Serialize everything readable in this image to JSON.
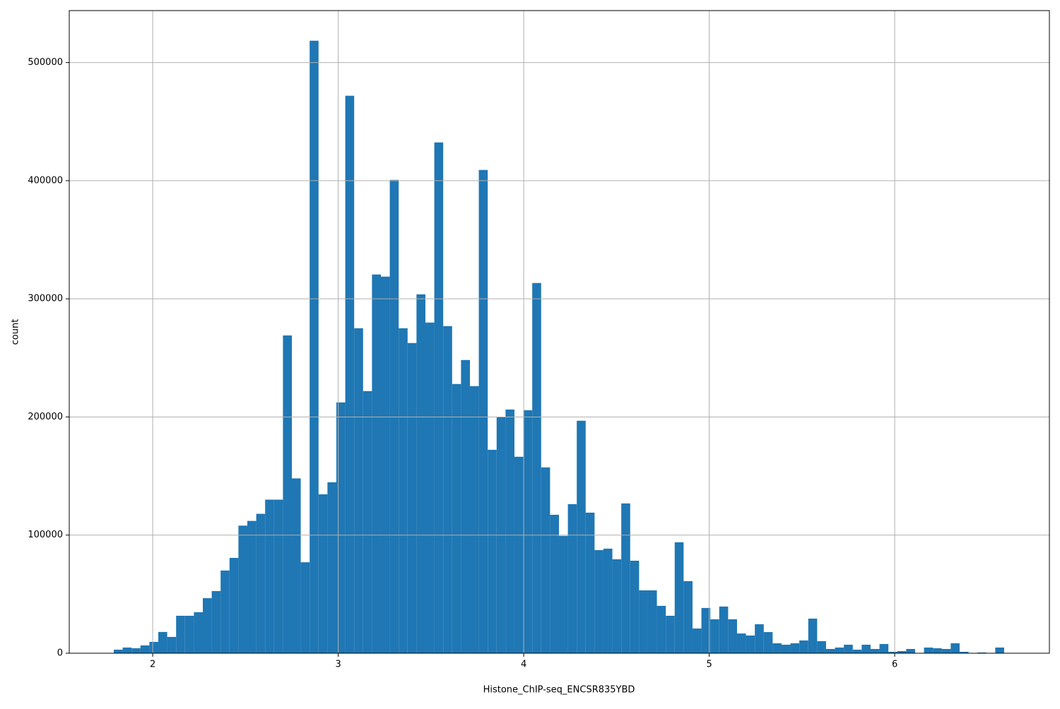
{
  "chart_data": {
    "type": "histogram",
    "xlabel": "Histone_ChIP-seq_ENCSR835YBD",
    "ylabel": "count",
    "color": "#1f77b4",
    "grid": true,
    "bins": [
      1.79,
      1.838,
      1.886,
      1.934,
      1.982,
      2.03,
      2.078,
      2.126,
      2.174,
      2.222,
      2.27,
      2.318,
      2.366,
      2.414,
      2.462,
      2.51,
      2.558,
      2.606,
      2.654,
      2.702,
      2.75,
      2.798,
      2.846,
      2.894,
      2.942,
      2.99,
      3.038,
      3.086,
      3.134,
      3.182,
      3.23,
      3.278,
      3.326,
      3.374,
      3.422,
      3.47,
      3.518,
      3.566,
      3.614,
      3.662,
      3.71,
      3.758,
      3.806,
      3.854,
      3.902,
      3.95,
      3.998,
      4.046,
      4.094,
      4.142,
      4.19,
      4.238,
      4.286,
      4.334,
      4.382,
      4.43,
      4.478,
      4.526,
      4.574,
      4.622,
      4.67,
      4.718,
      4.766,
      4.814,
      4.862,
      4.91,
      4.958,
      5.006,
      5.054,
      5.102,
      5.15,
      5.198,
      5.246,
      5.294,
      5.342,
      5.39,
      5.438,
      5.486,
      5.534,
      5.582,
      5.63,
      5.678,
      5.726,
      5.774,
      5.822,
      5.87,
      5.918,
      5.966,
      6.014,
      6.062,
      6.11,
      6.158,
      6.206,
      6.254,
      6.302,
      6.35,
      6.398,
      6.446,
      6.494,
      6.542,
      6.59
    ],
    "values": [
      3000,
      4800,
      4200,
      6600,
      9600,
      18000,
      13800,
      31700,
      31700,
      34700,
      46600,
      52600,
      70000,
      80700,
      108000,
      112000,
      118000,
      130000,
      130000,
      269000,
      148000,
      77000,
      518500,
      134500,
      144700,
      212300,
      471900,
      275100,
      221900,
      320600,
      318800,
      400700,
      275100,
      262600,
      303800,
      279900,
      432400,
      276900,
      227900,
      248200,
      226100,
      409100,
      172200,
      199800,
      206300,
      166300,
      205700,
      313400,
      157300,
      117200,
      99300,
      126200,
      196800,
      119000,
      87300,
      88500,
      79500,
      126800,
      78300,
      53200,
      53200,
      40100,
      31700,
      93900,
      61000,
      20900,
      38300,
      28700,
      39500,
      28700,
      16700,
      15000,
      24500,
      17900,
      8400,
      7200,
      8400,
      10800,
      29300,
      10200,
      3600,
      4800,
      7200,
      3000,
      7200,
      3600,
      7800,
      1200,
      1800,
      3600,
      0,
      4800,
      4200,
      3600,
      8400,
      1200,
      0,
      600,
      0,
      4800
    ],
    "xlim": [
      1.55,
      6.834
    ],
    "ylim": [
      0,
      544000
    ],
    "xticks": [
      2,
      3,
      4,
      5,
      6
    ],
    "yticks": [
      0,
      100000,
      200000,
      300000,
      400000,
      500000
    ]
  }
}
